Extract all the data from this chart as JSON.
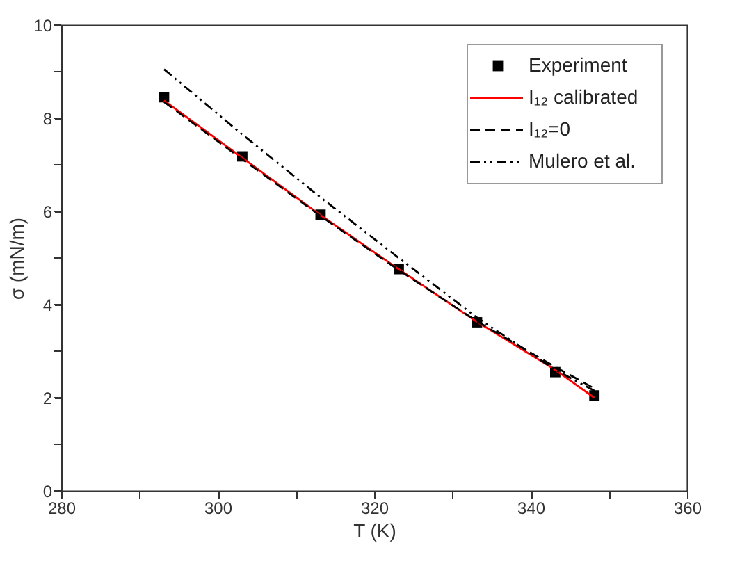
{
  "chart_data": {
    "type": "line",
    "xlabel": "T (K)",
    "ylabel": "σ (mN/m)",
    "xlim": [
      280,
      360
    ],
    "ylim": [
      0,
      10
    ],
    "xticks": [
      280,
      {
        "value": 290,
        "label": null
      },
      300,
      {
        "value": 310,
        "label": null
      },
      320,
      {
        "value": 330,
        "label": null
      },
      340,
      {
        "value": 350,
        "label": null
      },
      360
    ],
    "yticks": [
      0,
      {
        "value": 1,
        "label": null
      },
      2,
      {
        "value": 3,
        "label": null
      },
      4,
      {
        "value": 5,
        "label": null
      },
      6,
      {
        "value": 7,
        "label": null
      },
      8,
      {
        "value": 9,
        "label": null
      },
      10
    ],
    "grid": false,
    "legend": "top right",
    "series": [
      {
        "name": "Experiment",
        "type": "scatter",
        "marker": "square",
        "color": "#000000",
        "x": [
          293.15,
          303.15,
          313.15,
          323.15,
          333.15,
          343.15,
          348.15
        ],
        "values": [
          8.45,
          7.18,
          5.93,
          4.76,
          3.62,
          2.55,
          2.05
        ]
      },
      {
        "name": "I₁₂ calibrated",
        "line_style": "solid",
        "color": "#ff0000",
        "x": [
          293.15,
          303.15,
          313.15,
          323.15,
          333.15,
          343.15,
          348.15
        ],
        "values": [
          8.38,
          7.15,
          5.92,
          4.76,
          3.63,
          2.6,
          2.0
        ]
      },
      {
        "name": "I₁₂=0",
        "line_style": "dashed",
        "color": "#000000",
        "x": [
          293.15,
          303.15,
          313.15,
          323.15,
          333.15,
          343.15,
          348.15
        ],
        "values": [
          8.35,
          7.12,
          5.9,
          4.74,
          3.64,
          2.66,
          2.2
        ]
      },
      {
        "name": "Mulero et al.",
        "line_style": "dotted",
        "color": "#000000",
        "x": [
          293.15,
          303.15,
          313.15,
          323.15,
          333.15,
          343.15,
          348.15
        ],
        "values": [
          9.05,
          7.65,
          6.3,
          5.0,
          3.72,
          2.6,
          2.15
        ]
      }
    ]
  }
}
